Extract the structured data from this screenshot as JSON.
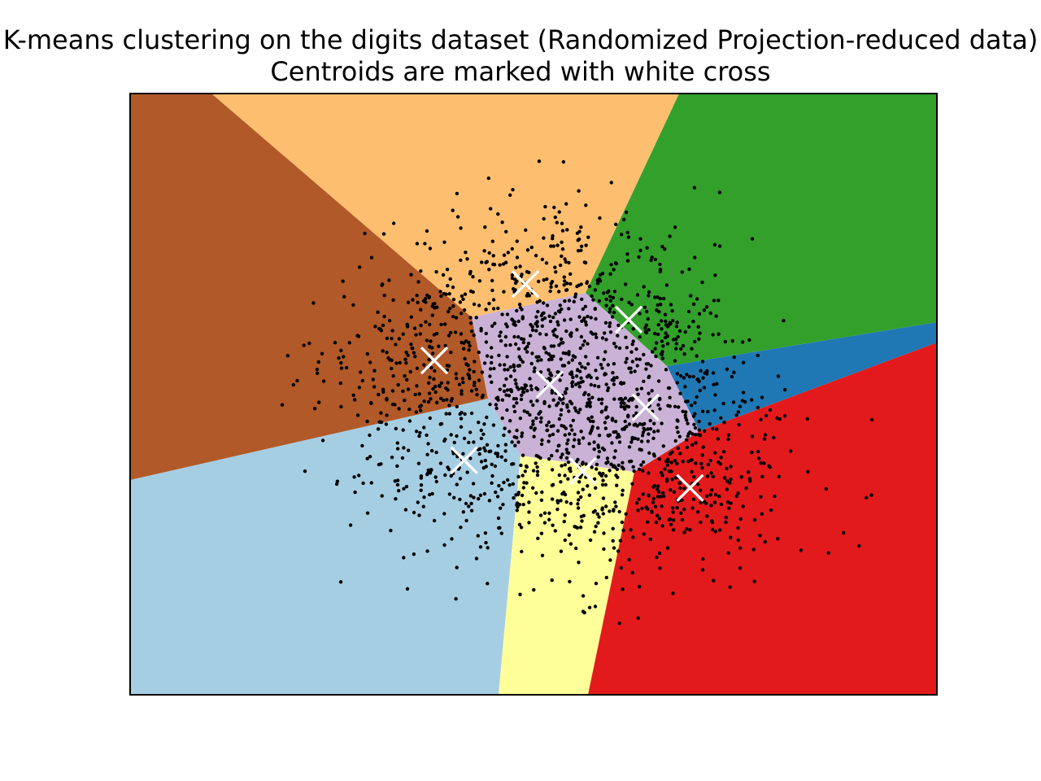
{
  "chart_data": {
    "type": "scatter",
    "title_lines": [
      "K-means clustering on the digits dataset (Randomized Projection-reduced data)",
      "Centroids are marked with white cross"
    ],
    "xlabel": "",
    "ylabel": "",
    "ticks_visible": false,
    "grid": false,
    "legend": "none",
    "xlim": [
      0,
      1
    ],
    "ylim": [
      0,
      1
    ],
    "point_color": "#000000",
    "centroid_color": "#ffffff",
    "region_colors": {
      "light_blue": "#a6cee3",
      "yellow": "#ffff99",
      "red": "#e31a1c",
      "blue": "#1f78b4",
      "green": "#33a02c",
      "orange": "#fdbf6f",
      "brown": "#b15928",
      "center": "#cab2d6"
    },
    "centroids": [
      {
        "x": 0.49,
        "y": 0.683
      },
      {
        "x": 0.618,
        "y": 0.624
      },
      {
        "x": 0.377,
        "y": 0.556
      },
      {
        "x": 0.52,
        "y": 0.516
      },
      {
        "x": 0.639,
        "y": 0.478
      },
      {
        "x": 0.414,
        "y": 0.39
      },
      {
        "x": 0.561,
        "y": 0.372
      },
      {
        "x": 0.694,
        "y": 0.344
      }
    ],
    "n_points": 1797
  }
}
